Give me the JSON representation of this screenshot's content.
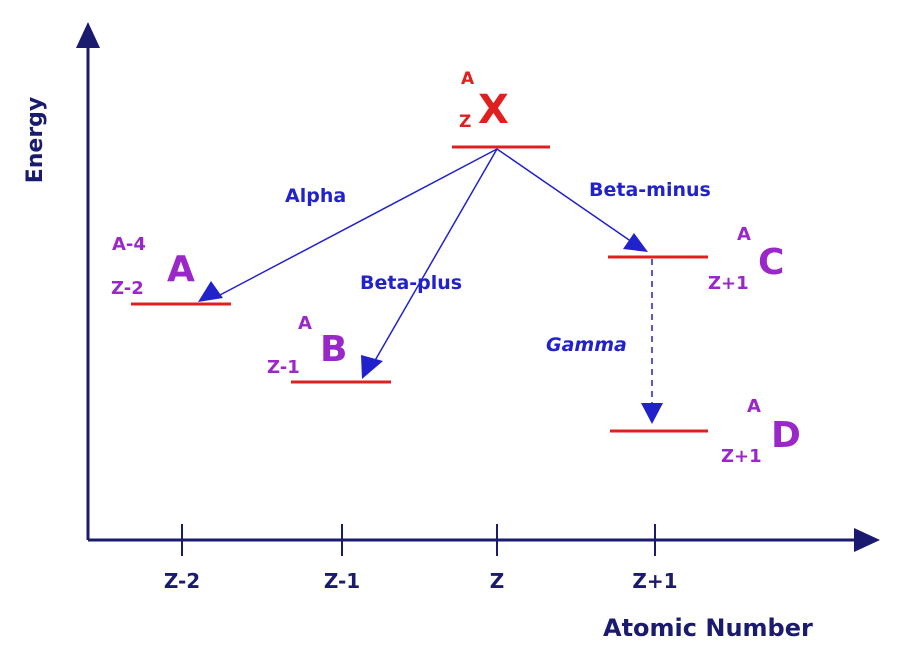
{
  "axes": {
    "y_label": "Energy",
    "x_label": "Atomic Number",
    "x_ticks": [
      "Z-2",
      "Z-1",
      "Z",
      "Z+1"
    ]
  },
  "nuclides": {
    "parent": {
      "mass": "A",
      "atomic": "Z",
      "symbol": "X"
    },
    "alpha": {
      "mass": "A-4",
      "atomic": "Z-2",
      "symbol": "A"
    },
    "beta_plus": {
      "mass": "A",
      "atomic": "Z-1",
      "symbol": "B"
    },
    "beta_minus": {
      "mass": "A",
      "atomic": "Z+1",
      "symbol": "C"
    },
    "gamma": {
      "mass": "A",
      "atomic": "Z+1",
      "symbol": "D"
    }
  },
  "transitions": {
    "alpha": "Alpha",
    "beta_plus": "Beta-plus",
    "beta_minus": "Beta-minus",
    "gamma": "Gamma"
  },
  "colors": {
    "axis": "#1a1a6e",
    "arrow": "#2222cc",
    "level": "#e02020",
    "nuclide": "#9a28c8",
    "parent": "#e02020"
  }
}
